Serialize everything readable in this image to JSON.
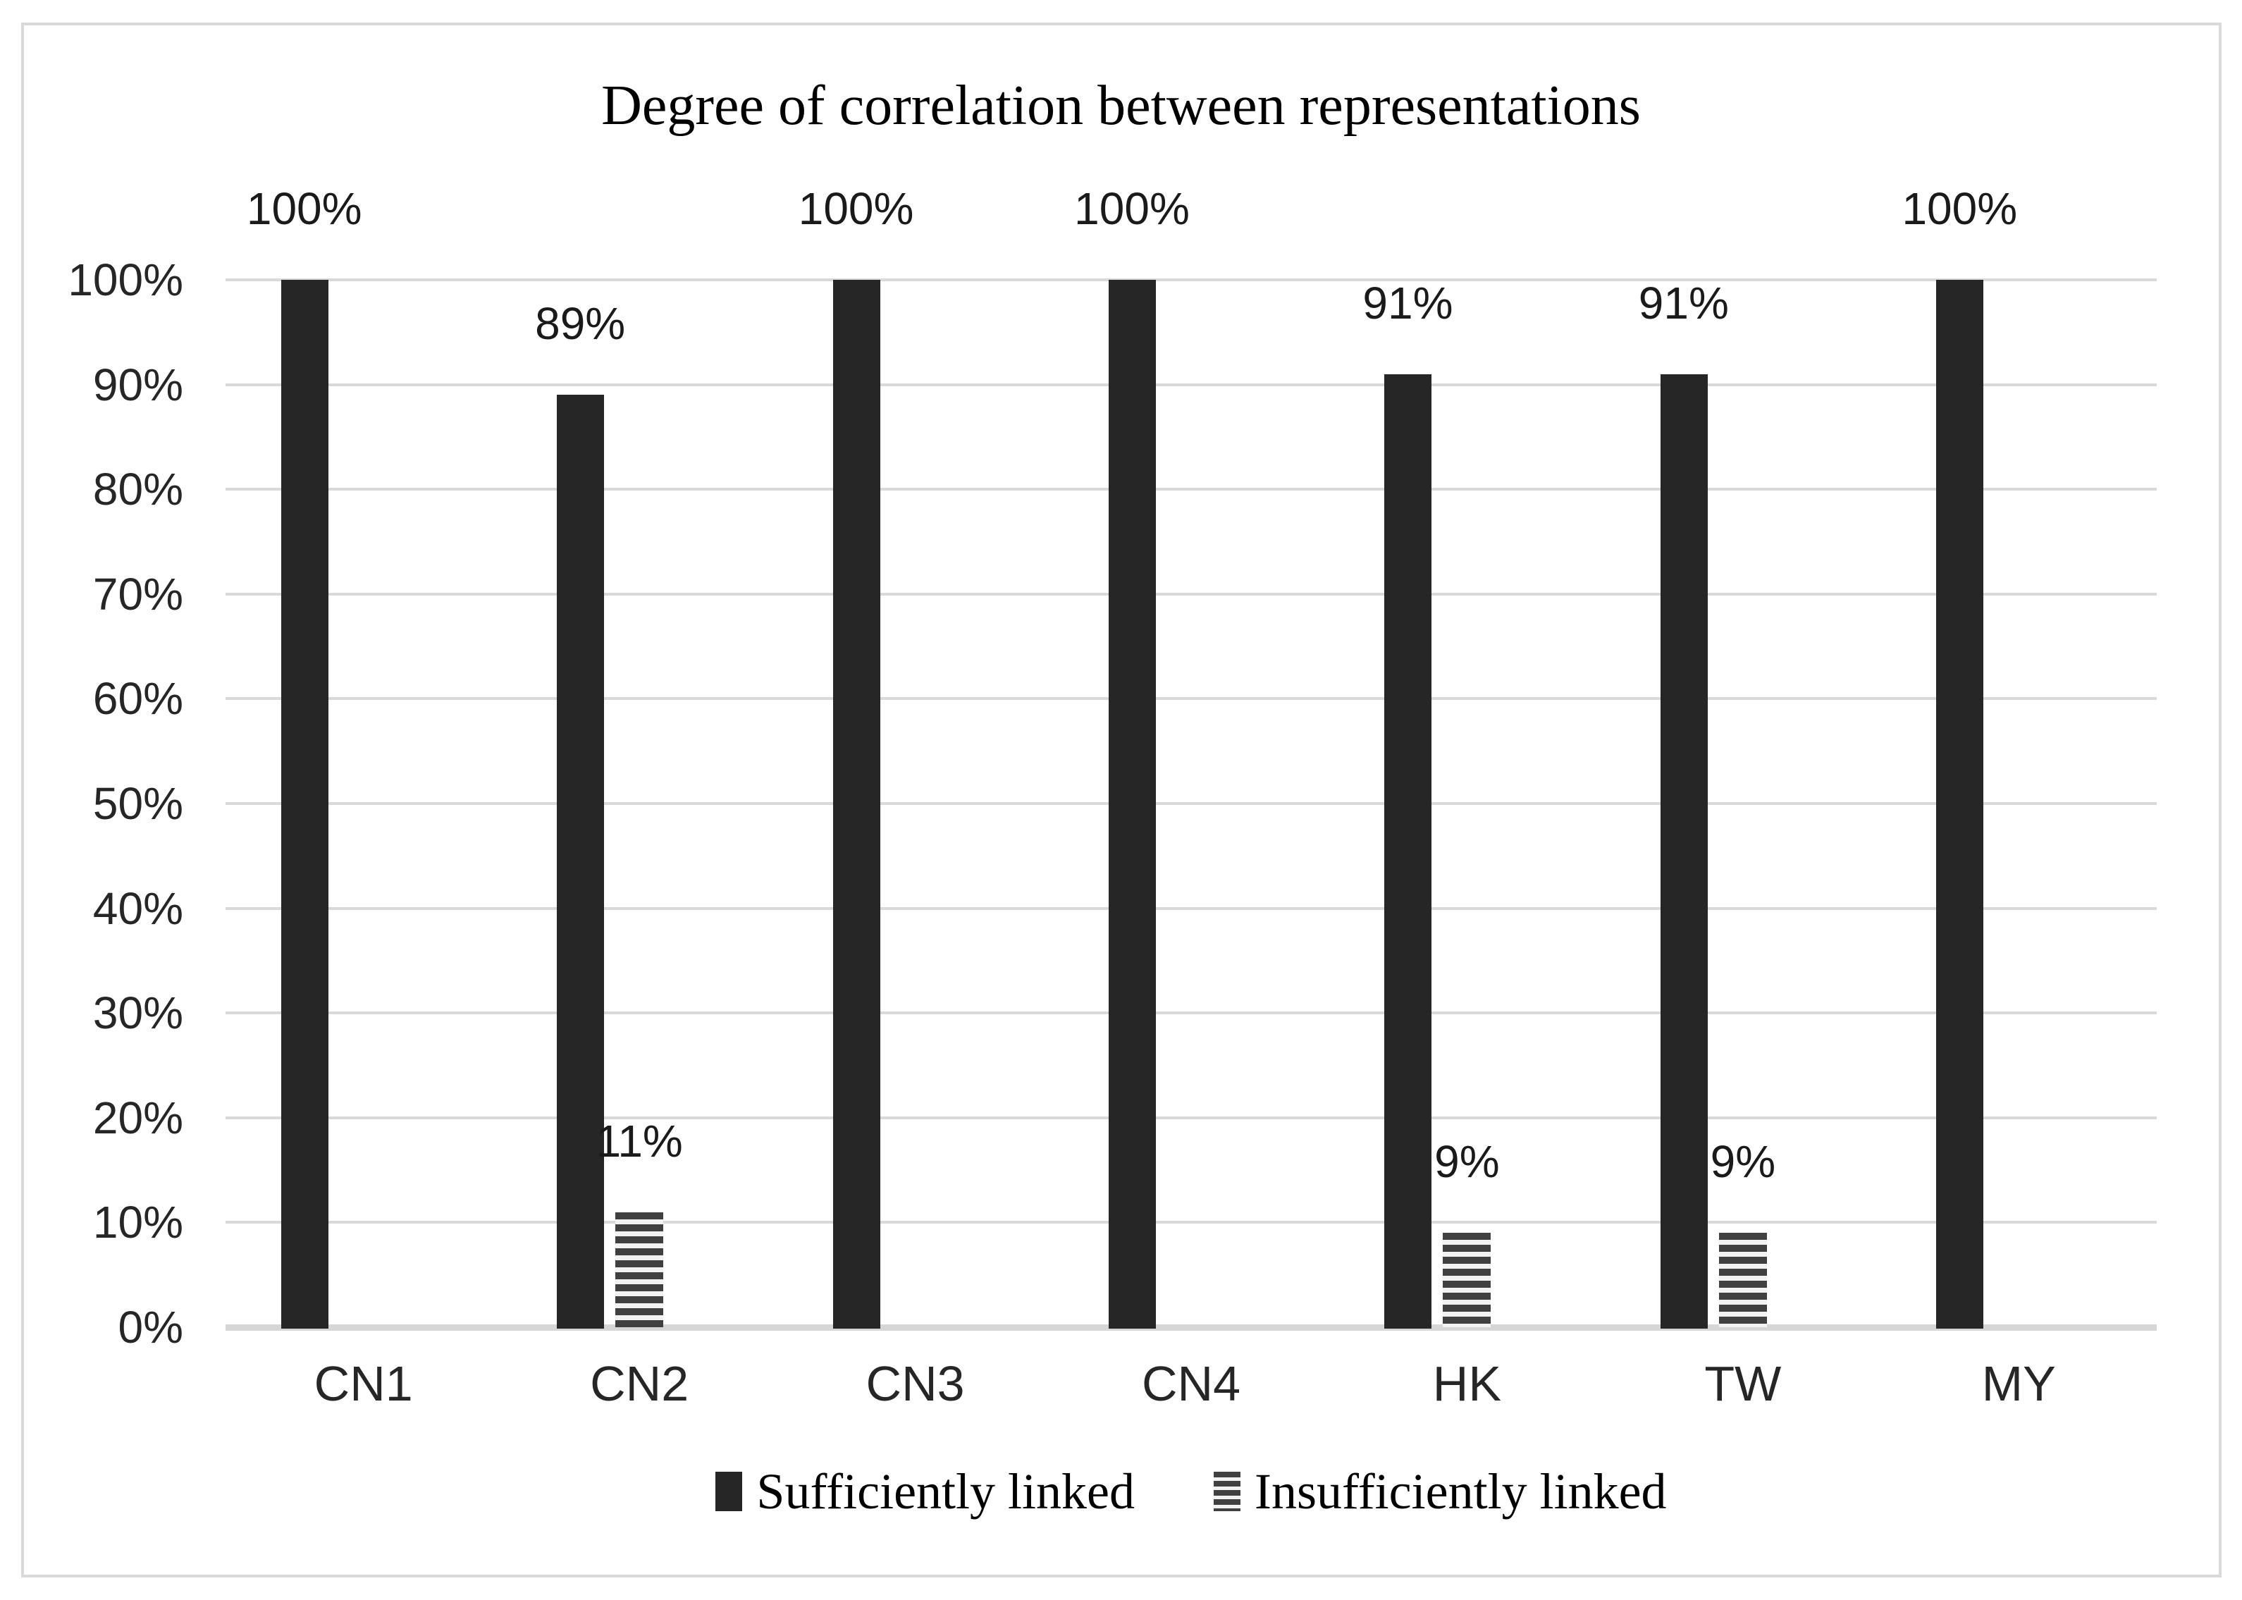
{
  "chart_data": {
    "type": "bar",
    "title": "Degree of correlation between representations",
    "categories": [
      "CN1",
      "CN2",
      "CN3",
      "CN4",
      "HK",
      "TW",
      "MY"
    ],
    "series": [
      {
        "name": "Sufficiently linked",
        "pattern": "solid",
        "values": [
          100,
          89,
          100,
          100,
          91,
          91,
          100
        ],
        "labels": [
          "100%",
          "89%",
          "100%",
          "100%",
          "91%",
          "91%",
          "100%"
        ]
      },
      {
        "name": "Insufficiently linked",
        "pattern": "striped",
        "values": [
          0,
          11,
          0,
          0,
          9,
          9,
          0
        ],
        "labels": [
          "",
          "11%",
          "",
          "",
          "9%",
          "9%",
          ""
        ]
      }
    ],
    "y_axis": {
      "min": 0,
      "max": 100,
      "step": 10,
      "tick_labels": [
        "0%",
        "10%",
        "20%",
        "30%",
        "40%",
        "50%",
        "60%",
        "70%",
        "80%",
        "90%",
        "100%"
      ]
    },
    "grid": true,
    "legend_position": "bottom",
    "colors": {
      "bar_solid": "#262626",
      "stripe_dark": "#404040",
      "stripe_light": "#f2f2f2",
      "gridline": "#d9d9d9",
      "frame_border": "#d9d9d9",
      "text": "#262626"
    }
  }
}
